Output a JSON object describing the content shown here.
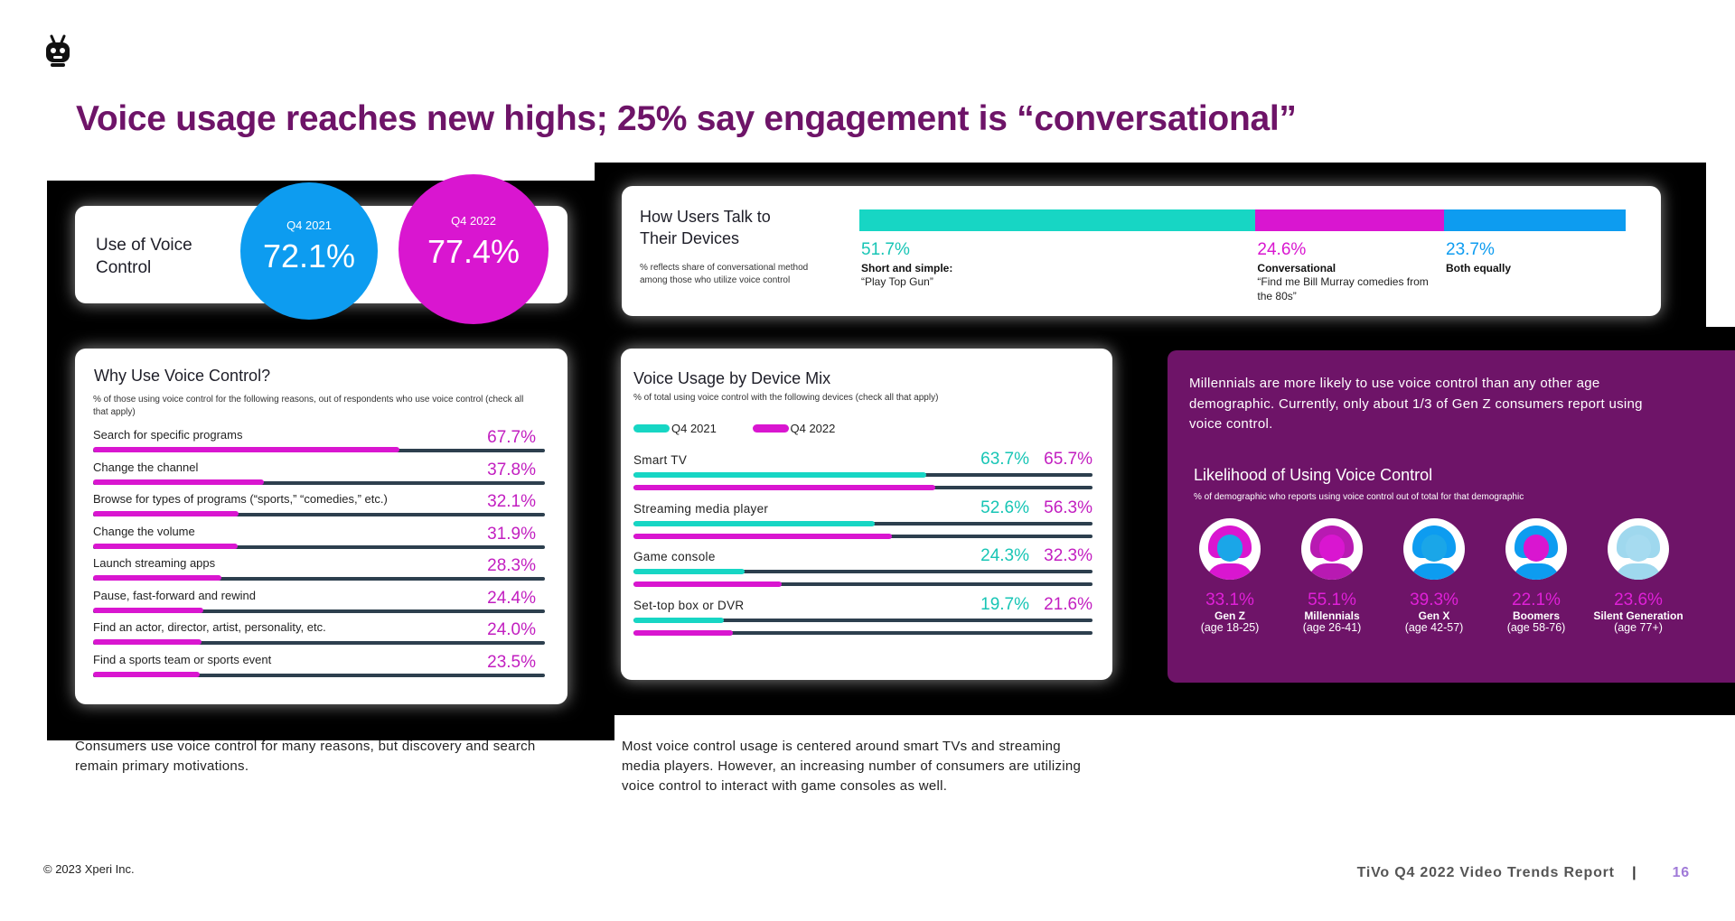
{
  "page": {
    "title": "Voice usage reaches new highs; 25% say engagement is “conversational”",
    "copyright": "© 2023 Xperi Inc.",
    "report": "TiVo Q4 2022 Video Trends Report",
    "page_number": "16"
  },
  "voice_use": {
    "label": "Use of Voice Control",
    "q4_2021_label": "Q4 2021",
    "q4_2021_value": "72.1%",
    "q4_2022_label": "Q4 2022",
    "q4_2022_value": "77.4%",
    "colors": {
      "q4_2021": "#0d9cf0",
      "q4_2022": "#d916d0"
    }
  },
  "talk": {
    "title": "How Users Talk to Their Devices",
    "note": "% reflects share of conversational method among those who utilize voice control",
    "segments": [
      {
        "pct": "51.7%",
        "value": 51.7,
        "heading": "Short and simple:",
        "desc": "“Play Top Gun”",
        "color": "#17d6c4"
      },
      {
        "pct": "24.6%",
        "value": 24.6,
        "heading": "Conversational",
        "desc": "“Find me Bill Murray comedies from the 80s”",
        "color": "#d916d0"
      },
      {
        "pct": "23.7%",
        "value": 23.7,
        "heading": "Both equally",
        "desc": "",
        "color": "#0d9cf0"
      }
    ]
  },
  "why": {
    "title": "Why Use Voice Control?",
    "note": "% of those using voice control for the following reasons, out of respondents who use voice control (check all that apply)"
  },
  "device": {
    "title": "Voice Usage by Device Mix",
    "note": "% of total using voice control with the following devices (check all that apply)",
    "legend_2021": "Q4 2021",
    "legend_2022": "Q4 2022"
  },
  "millennials": {
    "text": "Millennials are more likely to use voice control than any other age demographic. Currently, only about 1/3 of Gen Z consumers report using voice control.",
    "title": "Likelihood of Using Voice Control",
    "note": "% of demographic who reports using voice control out of total for that demographic"
  },
  "footnotes": {
    "left": "Consumers use voice control for many reasons, but discovery and search remain primary motivations.",
    "mid": "Most voice control usage is centered around smart TVs and streaming media players. However, an increasing number of consumers are utilizing voice control to interact with game consoles as well."
  },
  "chart_data": [
    {
      "type": "bar",
      "title": "Why Use Voice Control?",
      "categories": [
        "Search for specific programs",
        "Change the channel",
        "Browse for types of programs (“sports,” “comedies,” etc.)",
        "Change the volume",
        "Launch streaming apps",
        "Pause, fast-forward and rewind",
        "Find an actor, director, artist, personality, etc.",
        "Find a sports team or sports event"
      ],
      "values": [
        67.7,
        37.8,
        32.1,
        31.9,
        28.3,
        24.4,
        24.0,
        23.5
      ],
      "labels": [
        "67.7%",
        "37.8%",
        "32.1%",
        "31.9%",
        "28.3%",
        "24.4%",
        "24.0%",
        "23.5%"
      ],
      "ylim": [
        0,
        100
      ]
    },
    {
      "type": "bar",
      "title": "Voice Usage by Device Mix",
      "categories": [
        "Smart TV",
        "Streaming media player",
        "Game console",
        "Set-top box or DVR"
      ],
      "series": [
        {
          "name": "Q4 2021",
          "values": [
            63.7,
            52.6,
            24.3,
            19.7
          ],
          "labels": [
            "63.7%",
            "52.6%",
            "24.3%",
            "19.7%"
          ],
          "color": "#17d6c4"
        },
        {
          "name": "Q4 2022",
          "values": [
            65.7,
            56.3,
            32.3,
            21.6
          ],
          "labels": [
            "65.7%",
            "56.3%",
            "32.3%",
            "21.6%"
          ],
          "color": "#d916d0"
        }
      ],
      "ylim": [
        0,
        100
      ]
    },
    {
      "type": "bar",
      "title": "Likelihood of Using Voice Control",
      "categories": [
        "Gen Z",
        "Millennials",
        "Gen X",
        "Boomers",
        "Silent Generation"
      ],
      "ages": [
        "(age 18-25)",
        "(age 26-41)",
        "(age 42-57)",
        "(age 58-76)",
        "(age 77+)"
      ],
      "values": [
        33.1,
        55.1,
        39.3,
        22.1,
        23.6
      ],
      "labels": [
        "33.1%",
        "55.1%",
        "39.3%",
        "22.1%",
        "23.6%"
      ],
      "icons": [
        "gen-z-avatar-icon",
        "millennial-avatar-icon",
        "gen-x-avatar-icon",
        "boomer-avatar-icon",
        "silent-generation-avatar-icon"
      ]
    }
  ]
}
